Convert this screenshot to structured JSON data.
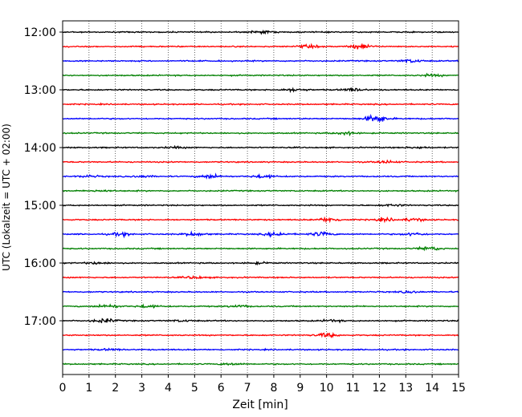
{
  "chart_data": {
    "type": "line",
    "title": "",
    "xlabel": "Zeit  [min]",
    "ylabel": "UTC (Lokalzeit = UTC + 02:00)",
    "xlim": [
      0,
      15
    ],
    "x_ticks": [
      0,
      1,
      2,
      3,
      4,
      5,
      6,
      7,
      8,
      9,
      10,
      11,
      12,
      13,
      14,
      15
    ],
    "x_tick_labels": [
      "0",
      "1",
      "2",
      "3",
      "4",
      "5",
      "6",
      "7",
      "8",
      "9",
      "10",
      "11",
      "12",
      "13",
      "14",
      "15"
    ],
    "y_tick_labels": [
      {
        "trace": 0,
        "label": "12:00"
      },
      {
        "trace": 4,
        "label": "13:00"
      },
      {
        "trace": 8,
        "label": "14:00"
      },
      {
        "trace": 12,
        "label": "15:00"
      },
      {
        "trace": 16,
        "label": "16:00"
      },
      {
        "trace": 20,
        "label": "17:00"
      }
    ],
    "grid": "vertical-dotted",
    "color_cycle": [
      "#000000",
      "#ff0000",
      "#0000ff",
      "#008000"
    ],
    "series": [
      {
        "start": "12:00",
        "color": "#000000",
        "bursts": [
          {
            "t": 7.5,
            "amp": 0.25
          }
        ]
      },
      {
        "start": "12:15",
        "color": "#ff0000",
        "bursts": [
          {
            "t": 9.3,
            "amp": 0.25
          },
          {
            "t": 11.3,
            "amp": 0.5
          }
        ]
      },
      {
        "start": "12:30",
        "color": "#0000ff",
        "bursts": [
          {
            "t": 13.2,
            "amp": 0.3
          }
        ]
      },
      {
        "start": "12:45",
        "color": "#008000",
        "bursts": [
          {
            "t": 14.0,
            "amp": 0.2
          }
        ]
      },
      {
        "start": "13:00",
        "color": "#000000",
        "bursts": [
          {
            "t": 8.8,
            "amp": 0.3
          },
          {
            "t": 11.0,
            "amp": 0.3
          }
        ]
      },
      {
        "start": "13:15",
        "color": "#ff0000",
        "bursts": []
      },
      {
        "start": "13:30",
        "color": "#0000ff",
        "bursts": [
          {
            "t": 11.9,
            "amp": 0.8
          }
        ]
      },
      {
        "start": "13:45",
        "color": "#008000",
        "bursts": [
          {
            "t": 10.7,
            "amp": 0.3
          }
        ]
      },
      {
        "start": "14:00",
        "color": "#000000",
        "bursts": [
          {
            "t": 4.3,
            "amp": 0.15
          },
          {
            "t": 13.5,
            "amp": 0.15
          }
        ]
      },
      {
        "start": "14:15",
        "color": "#ff0000",
        "bursts": [
          {
            "t": 12.3,
            "amp": 0.25
          }
        ]
      },
      {
        "start": "14:30",
        "color": "#0000ff",
        "bursts": [
          {
            "t": 1.0,
            "amp": 0.2
          },
          {
            "t": 3.0,
            "amp": 0.2
          },
          {
            "t": 5.6,
            "amp": 0.4
          },
          {
            "t": 7.6,
            "amp": 0.3
          }
        ]
      },
      {
        "start": "14:45",
        "color": "#008000",
        "bursts": [
          {
            "t": 1.5,
            "amp": 0.15
          }
        ]
      },
      {
        "start": "15:00",
        "color": "#000000",
        "bursts": [
          {
            "t": 12.5,
            "amp": 0.2
          }
        ]
      },
      {
        "start": "15:15",
        "color": "#ff0000",
        "bursts": [
          {
            "t": 10.1,
            "amp": 0.45
          },
          {
            "t": 12.2,
            "amp": 0.3
          },
          {
            "t": 13.3,
            "amp": 0.3
          }
        ]
      },
      {
        "start": "15:30",
        "color": "#0000ff",
        "bursts": [
          {
            "t": 2.2,
            "amp": 0.3
          },
          {
            "t": 5.0,
            "amp": 0.35
          },
          {
            "t": 8.1,
            "amp": 0.4
          },
          {
            "t": 9.8,
            "amp": 0.4
          },
          {
            "t": 13.3,
            "amp": 0.3
          }
        ]
      },
      {
        "start": "15:45",
        "color": "#008000",
        "bursts": [
          {
            "t": 13.9,
            "amp": 0.4
          }
        ]
      },
      {
        "start": "16:00",
        "color": "#000000",
        "bursts": [
          {
            "t": 1.3,
            "amp": 0.2
          },
          {
            "t": 7.4,
            "amp": 0.15
          }
        ]
      },
      {
        "start": "16:15",
        "color": "#ff0000",
        "bursts": [
          {
            "t": 5.0,
            "amp": 0.25
          }
        ]
      },
      {
        "start": "16:30",
        "color": "#0000ff",
        "bursts": [
          {
            "t": 13.2,
            "amp": 0.2
          }
        ]
      },
      {
        "start": "16:45",
        "color": "#008000",
        "bursts": [
          {
            "t": 1.7,
            "amp": 0.35
          },
          {
            "t": 3.2,
            "amp": 0.25
          },
          {
            "t": 6.7,
            "amp": 0.2
          }
        ]
      },
      {
        "start": "17:00",
        "color": "#000000",
        "bursts": [
          {
            "t": 1.6,
            "amp": 0.4
          },
          {
            "t": 4.5,
            "amp": 0.15
          },
          {
            "t": 10.2,
            "amp": 0.2
          }
        ]
      },
      {
        "start": "17:15",
        "color": "#ff0000",
        "bursts": [
          {
            "t": 10.0,
            "amp": 0.4
          }
        ]
      },
      {
        "start": "17:30",
        "color": "#0000ff",
        "bursts": [
          {
            "t": 1.8,
            "amp": 0.15
          }
        ]
      },
      {
        "start": "17:45",
        "color": "#008000",
        "bursts": [
          {
            "t": 6.4,
            "amp": 0.2
          }
        ]
      }
    ]
  }
}
